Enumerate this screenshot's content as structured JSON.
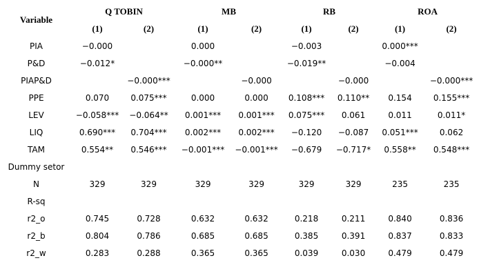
{
  "table": {
    "header": {
      "variable": "Variable",
      "groups": [
        "Q TOBIN",
        "MB",
        "RB",
        "ROA"
      ],
      "columns": [
        "(1)",
        "(2)",
        "(1)",
        "(2)",
        "(1)",
        "(2)",
        "(1)",
        "(2)"
      ]
    },
    "rows": [
      {
        "label": "PIA",
        "cells": [
          "−0.000",
          null,
          "0.000",
          null,
          "−0.003",
          null,
          "0.000***",
          null
        ]
      },
      {
        "label": "P&D",
        "cells": [
          "−0.012*",
          null,
          "−0.000**",
          null,
          "−0.019**",
          null,
          "−0.004",
          null
        ]
      },
      {
        "label": "PIAP&D",
        "cells": [
          null,
          "−0.000***",
          null,
          "−0.000",
          null,
          "−0.000",
          null,
          "−0.000***"
        ]
      },
      {
        "label": "PPE",
        "cells": [
          "0.070",
          "0.075***",
          "0.000",
          "0.000",
          "0.108***",
          "0.110**",
          "0.154",
          "0.155***"
        ]
      },
      {
        "label": "LEV",
        "cells": [
          "−0.058***",
          "−0.064**",
          "0.001***",
          "0.001***",
          "0.075***",
          "0.061",
          "0.011",
          "0.011*"
        ]
      },
      {
        "label": "LIQ",
        "cells": [
          "0.690***",
          "0.704***",
          "0.002***",
          "0.002***",
          "−0.120",
          "−0.087",
          "0.051***",
          "0.062"
        ]
      },
      {
        "label": "TAM",
        "cells": [
          "0.554**",
          "0.546***",
          "−0.001***",
          "−0.001***",
          "−0.679",
          "−0.717*",
          "0.558**",
          "0.548***"
        ]
      },
      {
        "label": "Dummy setor",
        "cells": [
          null,
          null,
          null,
          null,
          null,
          null,
          null,
          null
        ]
      },
      {
        "label": "N",
        "cells": [
          "329",
          "329",
          "329",
          "329",
          "329",
          "329",
          "235",
          "235"
        ]
      },
      {
        "label": "R-sq",
        "cells": [
          null,
          null,
          null,
          null,
          null,
          null,
          null,
          null
        ]
      },
      {
        "label": "r2_o",
        "cells": [
          "0.745",
          "0.728",
          "0.632",
          "0.632",
          "0.218",
          "0.211",
          "0.840",
          "0.836"
        ]
      },
      {
        "label": "r2_b",
        "cells": [
          "0.804",
          "0.786",
          "0.685",
          "0.685",
          "0.385",
          "0.391",
          "0.837",
          "0.833"
        ]
      },
      {
        "label": "r2_w",
        "cells": [
          "0.283",
          "0.288",
          "0.365",
          "0.365",
          "0.039",
          "0.030",
          "0.479",
          "0.479"
        ]
      }
    ]
  }
}
